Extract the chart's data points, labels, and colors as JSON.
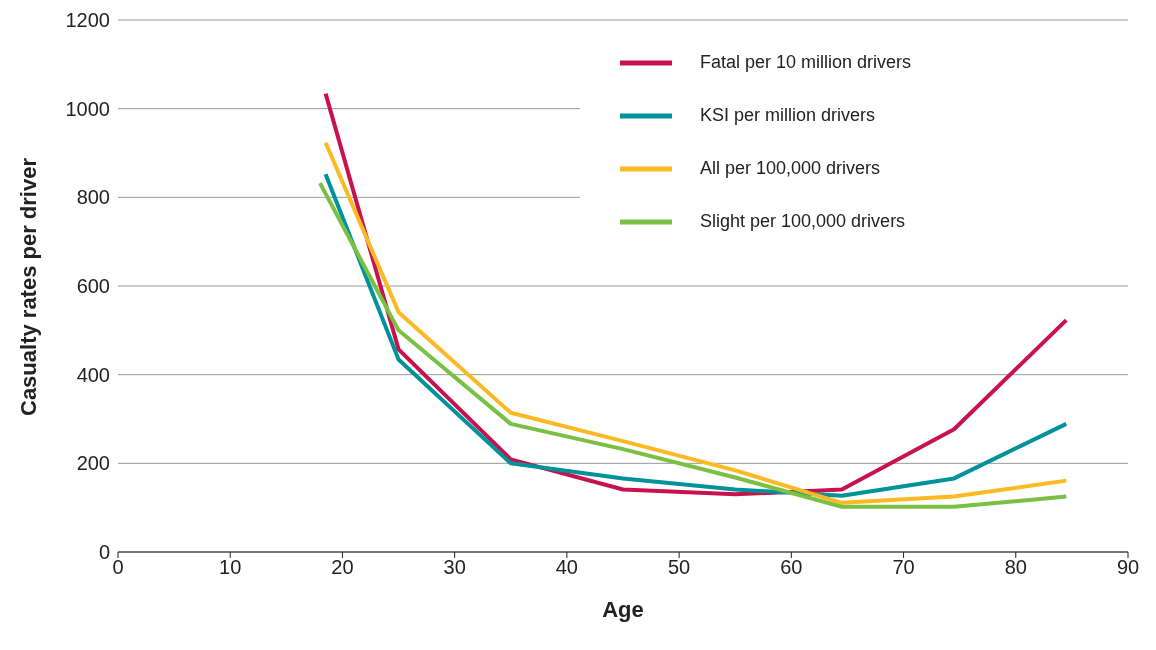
{
  "chart_data": {
    "type": "line",
    "xlabel": "Age",
    "ylabel": "Casualty rates per driver",
    "xlim": [
      0,
      90
    ],
    "xticks": [
      0,
      10,
      20,
      30,
      40,
      50,
      60,
      70,
      80,
      90
    ],
    "ylim": [
      0,
      1200
    ],
    "yticks": [
      0,
      200,
      400,
      600,
      800,
      1000,
      1200
    ],
    "grid": "y",
    "legend": "top right",
    "marker": "none",
    "line_style": "solid",
    "series": [
      {
        "name": "Fatal per 10 million drivers",
        "color": "#c8124f",
        "x": [
          18.5,
          25,
          35,
          45,
          55,
          64.5,
          74.5,
          84.5
        ],
        "values": [
          1034,
          457,
          209,
          141,
          130,
          141,
          277,
          523
        ]
      },
      {
        "name": "KSI per million drivers",
        "color": "#00929a",
        "x": [
          18.5,
          25,
          35,
          45,
          55,
          64.5,
          74.5,
          84.5
        ],
        "values": [
          852,
          434,
          200,
          166,
          141,
          127,
          166,
          289
        ]
      },
      {
        "name": "All per 100,000 drivers",
        "color": "#fbb923",
        "x": [
          18.5,
          25,
          35,
          45,
          55,
          64.5,
          74.5,
          84.5
        ],
        "values": [
          923,
          541,
          314,
          250,
          184,
          111,
          125,
          161
        ]
      },
      {
        "name": "Slight per 100,000 drivers",
        "color": "#7ac143",
        "x": [
          18,
          25,
          35,
          45,
          55,
          64.5,
          74.5,
          84.5
        ],
        "values": [
          832,
          500,
          289,
          232,
          168,
          102,
          102,
          125
        ]
      }
    ]
  }
}
